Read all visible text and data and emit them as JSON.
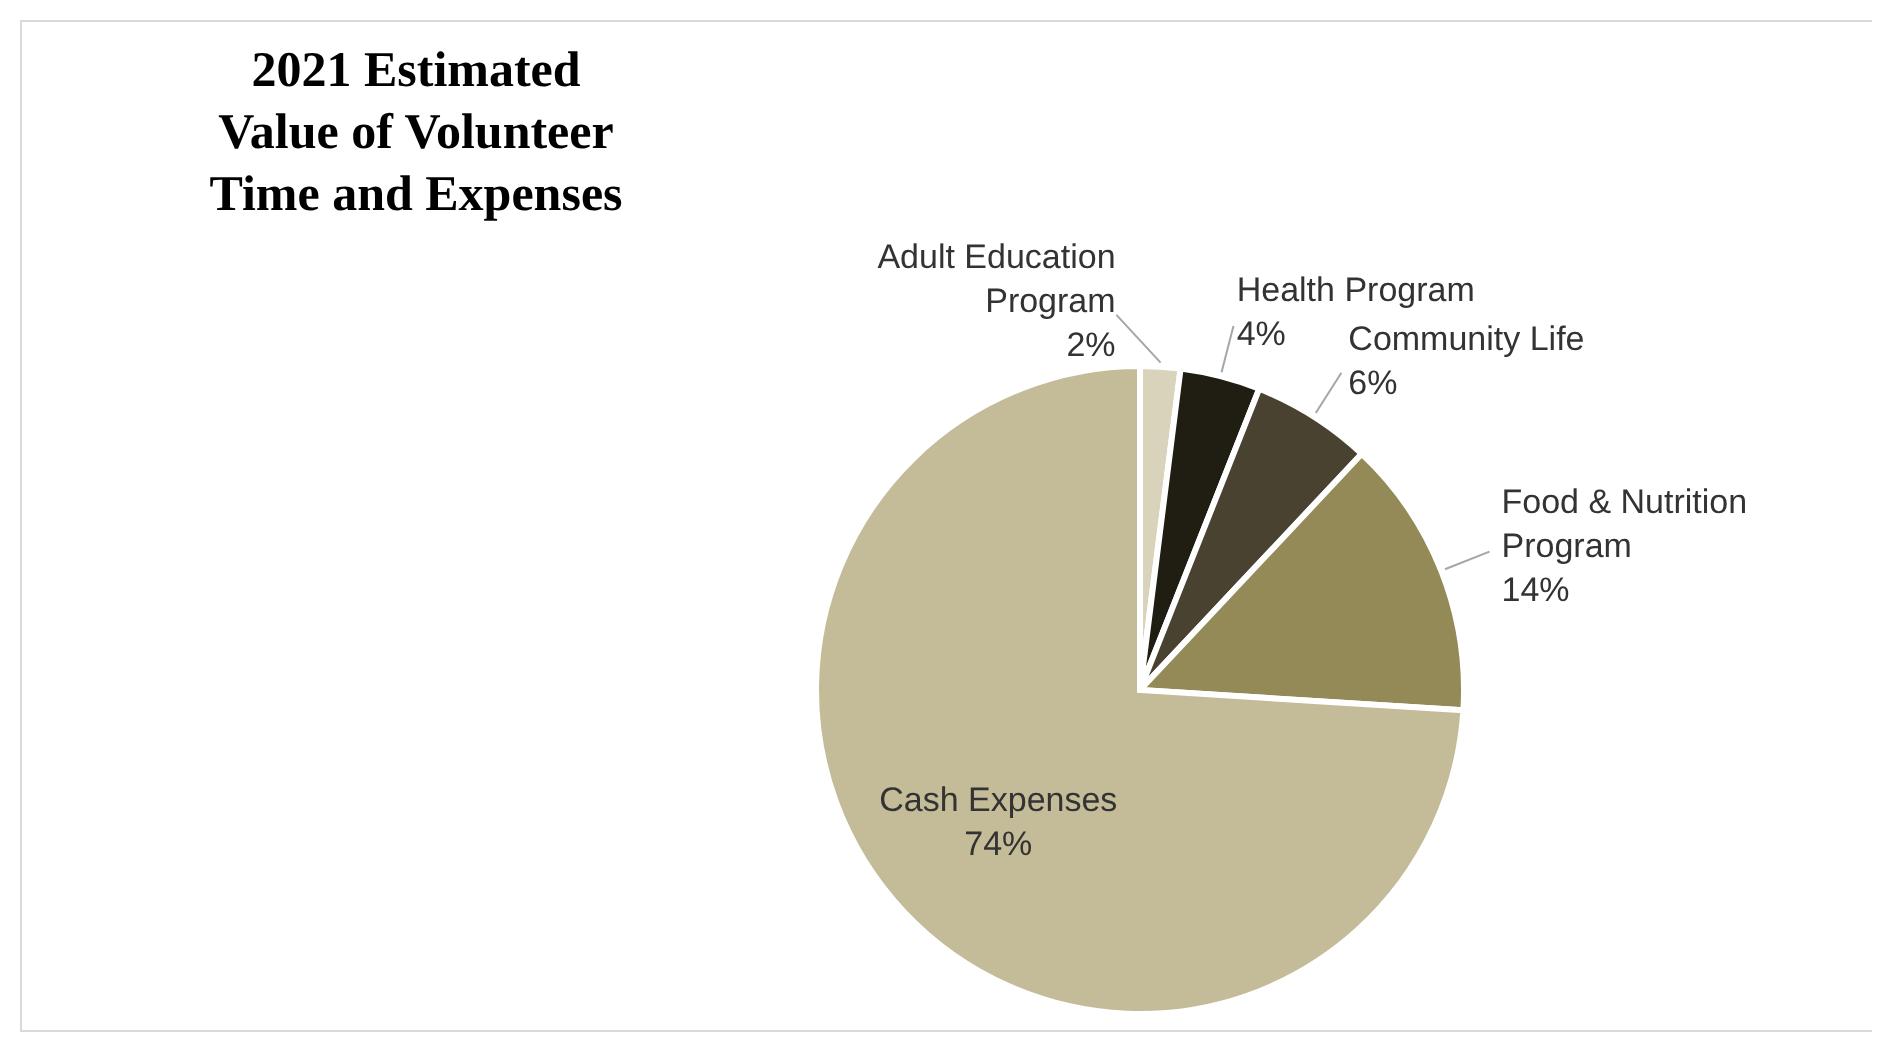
{
  "chart_data": {
    "type": "pie",
    "title": "2021 Estimated Value of Volunteer Time and Expenses",
    "categories": [
      "Adult Education Program",
      "Health Program",
      "Community Life",
      "Food & Nutrition Program",
      "Cash Expenses"
    ],
    "values": [
      2,
      4,
      6,
      14,
      74
    ],
    "colors": [
      "#d9d3bc",
      "#201d12",
      "#4a4230",
      "#948a57",
      "#c4bc98"
    ],
    "value_labels": [
      "2%",
      "4%",
      "6%",
      "14%",
      "74%"
    ]
  }
}
